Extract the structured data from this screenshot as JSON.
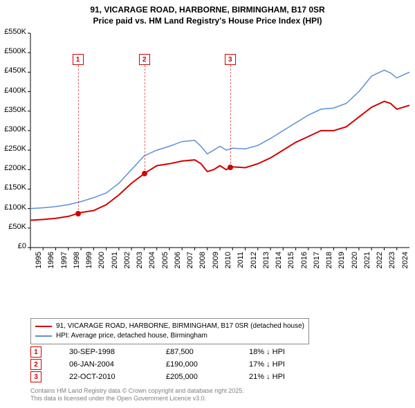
{
  "title": {
    "line1": "91, VICARAGE ROAD, HARBORNE, BIRMINGHAM, B17 0SR",
    "line2": "Price paid vs. HM Land Registry's House Price Index (HPI)"
  },
  "chart": {
    "type": "line",
    "background_color": "#ffffff",
    "ylim": [
      0,
      550000
    ],
    "ytick_step": 50000,
    "y_tick_labels": [
      "£0",
      "£50K",
      "£100K",
      "£150K",
      "£200K",
      "£250K",
      "£300K",
      "£350K",
      "£400K",
      "£450K",
      "£500K",
      "£550K"
    ],
    "xlim": [
      1995,
      2025
    ],
    "x_ticks": [
      1995,
      1996,
      1997,
      1998,
      1999,
      2000,
      2001,
      2002,
      2003,
      2004,
      2005,
      2006,
      2007,
      2008,
      2009,
      2010,
      2011,
      2012,
      2013,
      2014,
      2015,
      2016,
      2017,
      2018,
      2019,
      2020,
      2021,
      2022,
      2023,
      2024
    ],
    "series": [
      {
        "name": "price-paid",
        "label": "91, VICARAGE ROAD, HARBORNE, BIRMINGHAM, B17 0SR (detached house)",
        "color": "#d00000",
        "line_width": 2,
        "data": [
          [
            1995,
            70000
          ],
          [
            1996,
            72000
          ],
          [
            1997,
            75000
          ],
          [
            1998,
            80000
          ],
          [
            1998.75,
            87500
          ],
          [
            1999,
            90000
          ],
          [
            2000,
            95000
          ],
          [
            2001,
            110000
          ],
          [
            2002,
            135000
          ],
          [
            2003,
            165000
          ],
          [
            2004.02,
            190000
          ],
          [
            2004.5,
            200000
          ],
          [
            2005,
            210000
          ],
          [
            2006,
            215000
          ],
          [
            2007,
            222000
          ],
          [
            2008,
            225000
          ],
          [
            2008.5,
            215000
          ],
          [
            2009,
            195000
          ],
          [
            2009.5,
            200000
          ],
          [
            2010,
            210000
          ],
          [
            2010.5,
            200000
          ],
          [
            2010.81,
            205000
          ],
          [
            2011,
            207000
          ],
          [
            2012,
            205000
          ],
          [
            2013,
            215000
          ],
          [
            2014,
            230000
          ],
          [
            2015,
            250000
          ],
          [
            2016,
            270000
          ],
          [
            2017,
            285000
          ],
          [
            2018,
            300000
          ],
          [
            2019,
            300000
          ],
          [
            2020,
            310000
          ],
          [
            2021,
            335000
          ],
          [
            2022,
            360000
          ],
          [
            2023,
            375000
          ],
          [
            2023.5,
            370000
          ],
          [
            2024,
            355000
          ],
          [
            2024.5,
            360000
          ],
          [
            2025,
            365000
          ]
        ]
      },
      {
        "name": "hpi",
        "label": "HPI: Average price, detached house, Birmingham",
        "color": "#5b8fd6",
        "line_width": 1.5,
        "data": [
          [
            1995,
            100000
          ],
          [
            1996,
            102000
          ],
          [
            1997,
            105000
          ],
          [
            1998,
            110000
          ],
          [
            1999,
            118000
          ],
          [
            2000,
            128000
          ],
          [
            2001,
            140000
          ],
          [
            2002,
            165000
          ],
          [
            2003,
            200000
          ],
          [
            2004,
            235000
          ],
          [
            2005,
            250000
          ],
          [
            2006,
            260000
          ],
          [
            2007,
            272000
          ],
          [
            2008,
            275000
          ],
          [
            2008.5,
            260000
          ],
          [
            2009,
            240000
          ],
          [
            2009.5,
            250000
          ],
          [
            2010,
            260000
          ],
          [
            2010.5,
            250000
          ],
          [
            2011,
            255000
          ],
          [
            2012,
            253000
          ],
          [
            2013,
            262000
          ],
          [
            2014,
            280000
          ],
          [
            2015,
            300000
          ],
          [
            2016,
            320000
          ],
          [
            2017,
            340000
          ],
          [
            2018,
            355000
          ],
          [
            2019,
            358000
          ],
          [
            2020,
            370000
          ],
          [
            2021,
            400000
          ],
          [
            2022,
            440000
          ],
          [
            2023,
            455000
          ],
          [
            2023.5,
            448000
          ],
          [
            2024,
            435000
          ],
          [
            2024.5,
            443000
          ],
          [
            2025,
            450000
          ]
        ]
      }
    ],
    "markers": [
      {
        "id": "1",
        "x": 1998.75,
        "y": 87500,
        "label_y": 30
      },
      {
        "id": "2",
        "x": 2004.02,
        "y": 190000,
        "label_y": 30
      },
      {
        "id": "3",
        "x": 2010.81,
        "y": 205000,
        "label_y": 30
      }
    ]
  },
  "legend": {
    "items": [
      {
        "color": "#d00000",
        "label": "91, VICARAGE ROAD, HARBORNE, BIRMINGHAM, B17 0SR (detached house)"
      },
      {
        "color": "#5b8fd6",
        "label": "HPI: Average price, detached house, Birmingham"
      }
    ]
  },
  "marker_table": {
    "rows": [
      {
        "id": "1",
        "date": "30-SEP-1998",
        "price": "£87,500",
        "delta": "18% ↓ HPI"
      },
      {
        "id": "2",
        "date": "06-JAN-2004",
        "price": "£190,000",
        "delta": "17% ↓ HPI"
      },
      {
        "id": "3",
        "date": "22-OCT-2010",
        "price": "£205,000",
        "delta": "21% ↓ HPI"
      }
    ]
  },
  "footer": {
    "line1": "Contains HM Land Registry data © Crown copyright and database right 2025.",
    "line2": "This data is licensed under the Open Government Licence v3.0."
  }
}
